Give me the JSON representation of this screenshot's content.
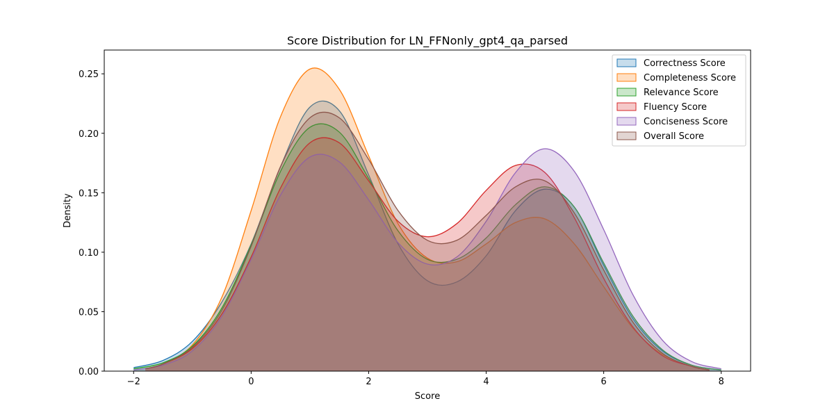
{
  "chart_data": {
    "type": "area",
    "title": "Score Distribution for LN_FFNonly_gpt4_qa_parsed",
    "xlabel": "Score",
    "ylabel": "Density",
    "xlim": [
      -2.5,
      8.5
    ],
    "ylim": [
      0,
      0.27
    ],
    "x_ticks": [
      "−2",
      "0",
      "2",
      "4",
      "6",
      "8"
    ],
    "x_tick_values": [
      -2,
      0,
      2,
      4,
      6,
      8
    ],
    "y_ticks": [
      "0.00",
      "0.05",
      "0.10",
      "0.15",
      "0.20",
      "0.25"
    ],
    "y_tick_values": [
      0,
      0.05,
      0.1,
      0.15,
      0.2,
      0.25
    ],
    "grid": false,
    "legend_position": "top-right",
    "fill_opacity": 0.25,
    "series": [
      {
        "name": "Correctness Score",
        "color": "#1f77b4",
        "x": [
          -2.0,
          -1.5,
          -1.0,
          -0.5,
          0.0,
          0.5,
          1.0,
          1.5,
          2.0,
          2.5,
          3.0,
          3.5,
          4.0,
          4.5,
          5.0,
          5.5,
          6.0,
          6.5,
          7.0,
          7.5,
          8.0
        ],
        "values": [
          0.003,
          0.009,
          0.025,
          0.058,
          0.107,
          0.172,
          0.222,
          0.219,
          0.165,
          0.107,
          0.076,
          0.075,
          0.097,
          0.135,
          0.153,
          0.138,
          0.089,
          0.044,
          0.017,
          0.005,
          0.001
        ]
      },
      {
        "name": "Completeness Score",
        "color": "#ff7f0e",
        "x": [
          -1.8,
          -1.5,
          -1.0,
          -0.5,
          0.0,
          0.5,
          1.0,
          1.5,
          2.0,
          2.5,
          3.0,
          3.5,
          4.0,
          4.5,
          5.0,
          5.5,
          6.0,
          6.5,
          7.0,
          7.5,
          7.8
        ],
        "values": [
          0.002,
          0.006,
          0.022,
          0.062,
          0.135,
          0.214,
          0.254,
          0.237,
          0.181,
          0.124,
          0.095,
          0.092,
          0.107,
          0.125,
          0.128,
          0.107,
          0.071,
          0.036,
          0.014,
          0.004,
          0.001
        ]
      },
      {
        "name": "Relevance Score",
        "color": "#2ca02c",
        "x": [
          -2.0,
          -1.5,
          -1.0,
          -0.5,
          0.0,
          0.5,
          1.0,
          1.5,
          2.0,
          2.5,
          3.0,
          3.5,
          4.0,
          4.5,
          5.0,
          5.5,
          6.0,
          6.5,
          7.0,
          7.5,
          8.0
        ],
        "values": [
          0.002,
          0.007,
          0.021,
          0.053,
          0.106,
          0.168,
          0.205,
          0.201,
          0.162,
          0.118,
          0.094,
          0.094,
          0.112,
          0.14,
          0.155,
          0.138,
          0.091,
          0.046,
          0.018,
          0.005,
          0.001
        ]
      },
      {
        "name": "Fluency Score",
        "color": "#d62728",
        "x": [
          -1.8,
          -1.5,
          -1.0,
          -0.5,
          0.0,
          0.5,
          1.0,
          1.5,
          2.0,
          2.5,
          3.0,
          3.5,
          4.0,
          4.5,
          5.0,
          5.5,
          6.0,
          6.5,
          7.0,
          7.5,
          7.8
        ],
        "values": [
          0.002,
          0.006,
          0.019,
          0.048,
          0.096,
          0.154,
          0.192,
          0.192,
          0.16,
          0.126,
          0.113,
          0.124,
          0.152,
          0.173,
          0.167,
          0.129,
          0.078,
          0.037,
          0.013,
          0.004,
          0.001
        ]
      },
      {
        "name": "Conciseness Score",
        "color": "#9467bd",
        "x": [
          -2.0,
          -1.5,
          -1.0,
          -0.5,
          0.0,
          0.5,
          1.0,
          1.5,
          2.0,
          2.5,
          3.0,
          3.5,
          4.0,
          4.5,
          5.0,
          5.5,
          6.0,
          6.5,
          7.0,
          7.5,
          8.0
        ],
        "values": [
          0.001,
          0.005,
          0.017,
          0.046,
          0.094,
          0.148,
          0.18,
          0.176,
          0.144,
          0.108,
          0.09,
          0.096,
          0.126,
          0.167,
          0.187,
          0.168,
          0.119,
          0.064,
          0.026,
          0.008,
          0.002
        ]
      },
      {
        "name": "Overall Score",
        "color": "#8c564b",
        "x": [
          -1.8,
          -1.5,
          -1.0,
          -0.5,
          0.0,
          0.5,
          1.0,
          1.5,
          2.0,
          2.5,
          3.0,
          3.5,
          4.0,
          4.5,
          5.0,
          5.5,
          6.0,
          6.5,
          7.0,
          7.5,
          7.8
        ],
        "values": [
          0.002,
          0.006,
          0.02,
          0.051,
          0.105,
          0.172,
          0.213,
          0.213,
          0.178,
          0.135,
          0.11,
          0.11,
          0.131,
          0.155,
          0.16,
          0.133,
          0.085,
          0.041,
          0.015,
          0.004,
          0.001
        ]
      }
    ]
  }
}
